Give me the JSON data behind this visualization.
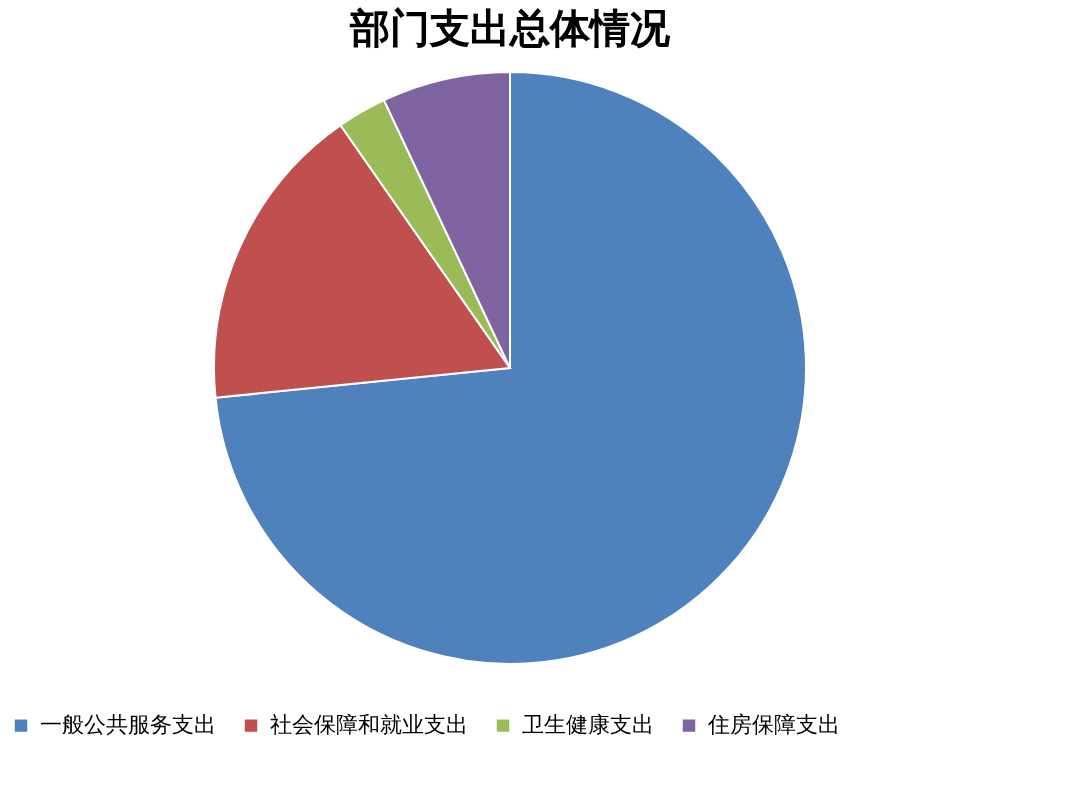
{
  "chart_data": {
    "type": "pie",
    "title": "部门支出总体情况",
    "categories": [
      "一般公共服务支出",
      "社会保障和就业支出",
      "卫生健康支出",
      "住房保障支出"
    ],
    "values": [
      73.4,
      16.9,
      2.7,
      7.0
    ],
    "colors": [
      "#4f81bd",
      "#c0504d",
      "#9bbb59",
      "#8064a2"
    ],
    "legend": "bottom"
  }
}
